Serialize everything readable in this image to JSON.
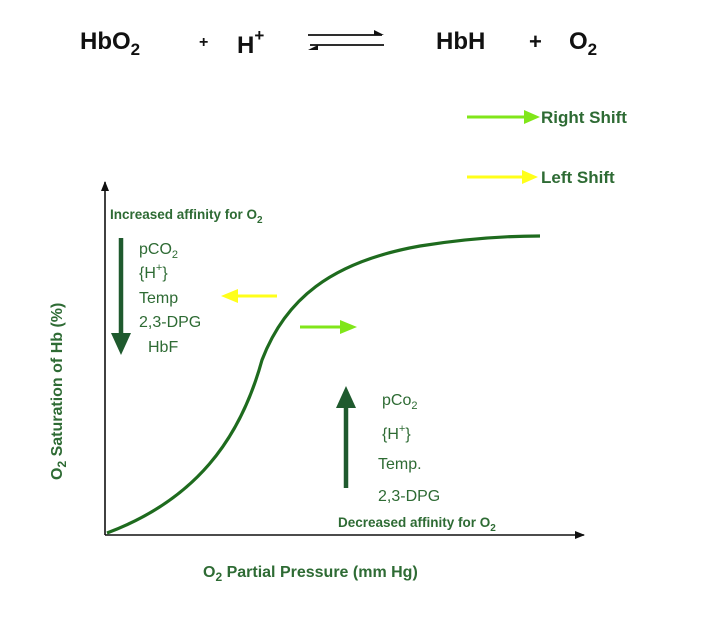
{
  "equation": {
    "reactant1_base": "HbO",
    "reactant1_sub": "2",
    "plus1": "+",
    "reactant2_base": "H",
    "reactant2_sup": "+",
    "product1": "HbH",
    "plus2": "+",
    "product2_base": "O",
    "product2_sub": "2"
  },
  "legend": {
    "right_shift": "Right Shift",
    "left_shift": "Left Shift"
  },
  "axes": {
    "y_label_prefix": "O",
    "y_label_sub": "2",
    "y_label_rest": " Saturation of Hb (%)",
    "x_label_prefix": "O",
    "x_label_sub": "2",
    "x_label_rest": " Partial Pressure (mm Hg)"
  },
  "left_factors": {
    "title_base": "Increased affinity for O",
    "title_sub": "2",
    "pco2_base": "pCO",
    "pco2_sub": "2",
    "h_open": "{H",
    "h_sup": "+",
    "h_close": "}",
    "temp": "Temp",
    "dpg": "2,3-DPG",
    "hbf": "HbF"
  },
  "right_factors": {
    "title_base": "Decreased affinity for O",
    "title_sub": "2",
    "pco2_base": "pCo",
    "pco2_sub": "2",
    "h_open": "{H",
    "h_sup": "+",
    "h_close": "}",
    "temp": "Temp.",
    "dpg": "2,3-DPG"
  },
  "colors": {
    "curve": "#1e6b1e",
    "label_green": "#2e6b34",
    "dark_arrow": "#1f5a2e",
    "right_shift": "#80e619",
    "left_shift": "#ffff1a",
    "text": "#111111"
  }
}
